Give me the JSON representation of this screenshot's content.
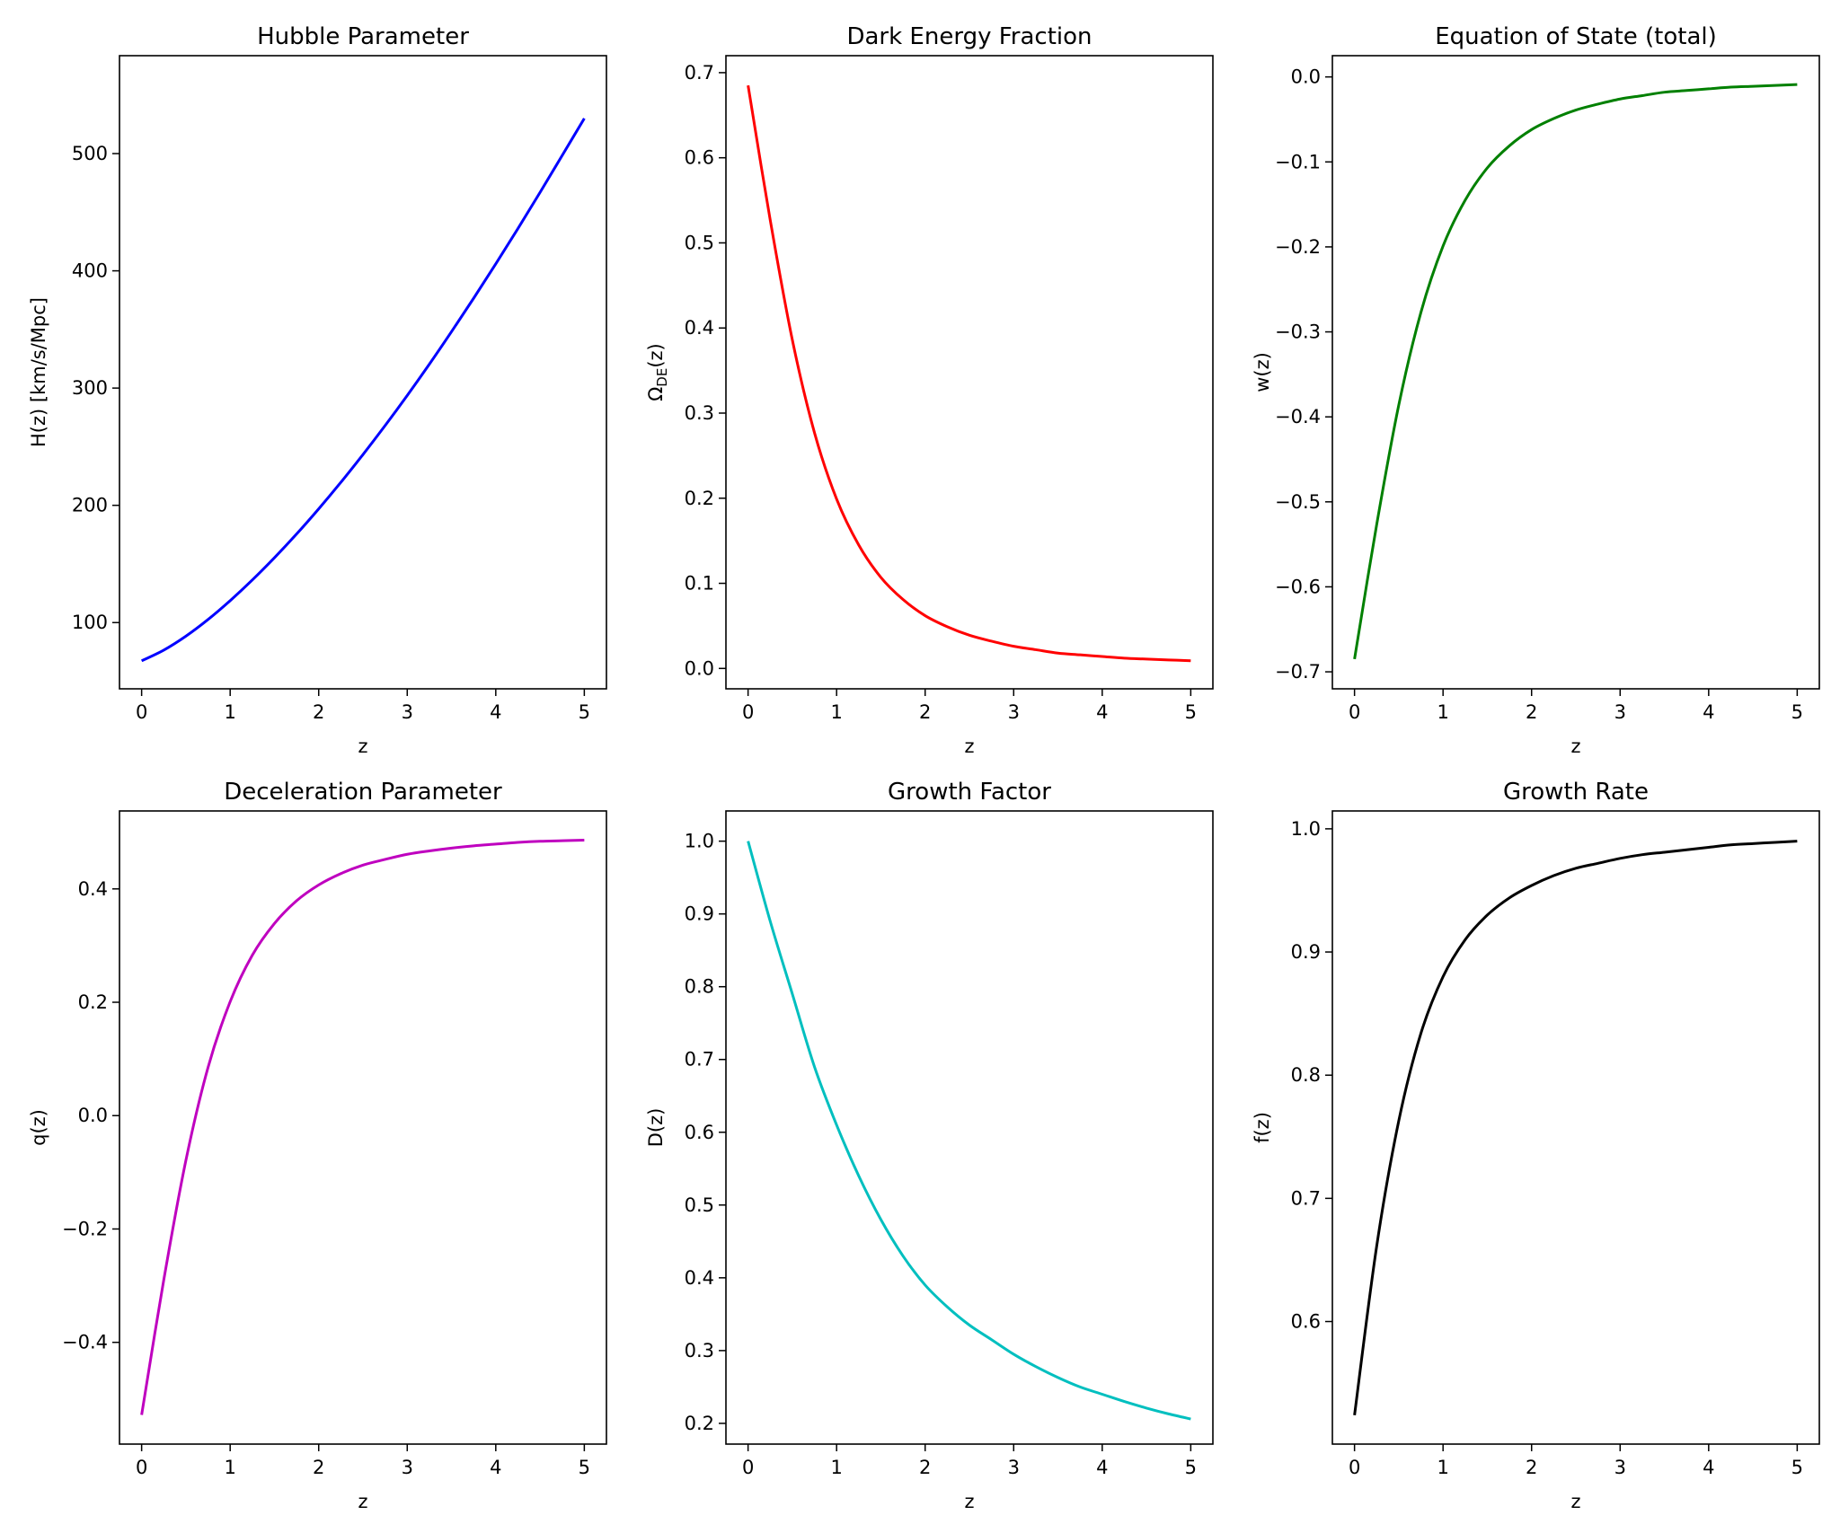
{
  "chart_data": [
    {
      "type": "line",
      "title": "Hubble Parameter",
      "xlabel": "z",
      "ylabel": "H(z) [km/s/Mpc]",
      "xlim": [
        -0.25,
        5.25
      ],
      "ylim": [
        43.5,
        583.5
      ],
      "xticks": [
        0,
        1,
        2,
        3,
        4,
        5
      ],
      "yticks": [
        100,
        200,
        300,
        400,
        500
      ],
      "tick_labels_y": [
        "100",
        "200",
        "300",
        "400",
        "500"
      ],
      "grid": false,
      "series": [
        {
          "color": "#0000ff",
          "x": [
            0,
            0.25,
            0.5,
            0.75,
            1,
            1.25,
            1.5,
            1.75,
            2,
            2.25,
            2.5,
            2.75,
            3,
            3.25,
            3.5,
            3.75,
            4,
            4.25,
            4.5,
            4.75,
            5
          ],
          "y": [
            67.4,
            76.5,
            88.4,
            102.6,
            118.7,
            136.3,
            155.3,
            175.5,
            197.0,
            219.6,
            243.3,
            268.0,
            293.7,
            320.4,
            348.1,
            376.6,
            405.9,
            436.0,
            466.9,
            498.4,
            530.0
          ]
        }
      ]
    },
    {
      "type": "line",
      "title": "Dark Energy Fraction",
      "xlabel": "z",
      "ylabel": "Ω_DE(z)",
      "ylabel_main": "Ω",
      "ylabel_sub": "DE",
      "ylabel_tail": "(z)",
      "xlim": [
        -0.25,
        5.25
      ],
      "ylim": [
        -0.02395,
        0.71995
      ],
      "xticks": [
        0,
        1,
        2,
        3,
        4,
        5
      ],
      "yticks": [
        0.0,
        0.1,
        0.2,
        0.3,
        0.4,
        0.5,
        0.6,
        0.7
      ],
      "tick_labels_y": [
        "0.0",
        "0.1",
        "0.2",
        "0.3",
        "0.4",
        "0.5",
        "0.6",
        "0.7"
      ],
      "grid": false,
      "series": [
        {
          "color": "#ff0000",
          "x": [
            0,
            0.25,
            0.5,
            0.75,
            1,
            1.25,
            1.5,
            1.75,
            2,
            2.25,
            2.5,
            2.75,
            3,
            3.25,
            3.5,
            3.75,
            4,
            4.25,
            4.5,
            4.75,
            5
          ],
          "y": [
            0.685,
            0.527,
            0.386,
            0.277,
            0.199,
            0.145,
            0.107,
            0.081,
            0.062,
            0.049,
            0.039,
            0.032,
            0.026,
            0.022,
            0.018,
            0.016,
            0.014,
            0.012,
            0.011,
            0.01,
            0.009
          ]
        }
      ]
    },
    {
      "type": "line",
      "title": "Equation of State (total)",
      "xlabel": "z",
      "ylabel": "w(z)",
      "xlim": [
        -0.25,
        5.25
      ],
      "ylim": [
        -0.72,
        0.025
      ],
      "xticks": [
        0,
        1,
        2,
        3,
        4,
        5
      ],
      "yticks": [
        0.0,
        -0.1,
        -0.2,
        -0.3,
        -0.4,
        -0.5,
        -0.6,
        -0.7
      ],
      "tick_labels_y": [
        "0.0",
        "−0.1",
        "−0.2",
        "−0.3",
        "−0.4",
        "−0.5",
        "−0.6",
        "−0.7"
      ],
      "grid": false,
      "series": [
        {
          "color": "#008000",
          "x": [
            0,
            0.25,
            0.5,
            0.75,
            1,
            1.25,
            1.5,
            1.75,
            2,
            2.25,
            2.5,
            2.75,
            3,
            3.25,
            3.5,
            3.75,
            4,
            4.25,
            4.5,
            4.75,
            5
          ],
          "y": [
            -0.685,
            -0.527,
            -0.386,
            -0.277,
            -0.199,
            -0.145,
            -0.107,
            -0.081,
            -0.062,
            -0.049,
            -0.039,
            -0.032,
            -0.026,
            -0.022,
            -0.018,
            -0.016,
            -0.014,
            -0.012,
            -0.011,
            -0.01,
            -0.009
          ]
        }
      ]
    },
    {
      "type": "line",
      "title": "Deceleration Parameter",
      "xlabel": "z",
      "ylabel": "q(z)",
      "xlim": [
        -0.25,
        5.25
      ],
      "ylim": [
        -0.5795,
        0.5375
      ],
      "xticks": [
        0,
        1,
        2,
        3,
        4,
        5
      ],
      "yticks": [
        -0.4,
        -0.2,
        0.0,
        0.2,
        0.4
      ],
      "tick_labels_y": [
        "−0.4",
        "−0.2",
        "0.0",
        "0.2",
        "0.4"
      ],
      "grid": false,
      "series": [
        {
          "color": "#bf00bf",
          "x": [
            0,
            0.25,
            0.5,
            0.75,
            1,
            1.25,
            1.5,
            1.75,
            2,
            2.25,
            2.5,
            2.75,
            3,
            3.25,
            3.5,
            3.75,
            4,
            4.25,
            4.5,
            4.75,
            5
          ],
          "y": [
            -0.528,
            -0.29,
            -0.079,
            0.085,
            0.201,
            0.283,
            0.339,
            0.379,
            0.407,
            0.427,
            0.442,
            0.452,
            0.461,
            0.467,
            0.472,
            0.476,
            0.479,
            0.482,
            0.484,
            0.485,
            0.486
          ]
        }
      ]
    },
    {
      "type": "line",
      "title": "Growth Factor",
      "xlabel": "z",
      "ylabel": "D(z)",
      "xlim": [
        -0.25,
        5.25
      ],
      "ylim": [
        0.1715,
        1.0415
      ],
      "xticks": [
        0,
        1,
        2,
        3,
        4,
        5
      ],
      "yticks": [
        0.2,
        0.3,
        0.4,
        0.5,
        0.6,
        0.7,
        0.8,
        0.9,
        1.0
      ],
      "tick_labels_y": [
        "0.2",
        "0.3",
        "0.4",
        "0.5",
        "0.6",
        "0.7",
        "0.8",
        "0.9",
        "1.0"
      ],
      "grid": false,
      "series": [
        {
          "color": "#00bfbf",
          "x": [
            0,
            0.25,
            0.5,
            0.75,
            1,
            1.25,
            1.5,
            1.75,
            2,
            2.25,
            2.5,
            2.75,
            3,
            3.25,
            3.5,
            3.75,
            4,
            4.25,
            4.5,
            4.75,
            5
          ],
          "y": [
            1.0,
            0.89,
            0.79,
            0.69,
            0.61,
            0.54,
            0.48,
            0.43,
            0.39,
            0.36,
            0.335,
            0.315,
            0.295,
            0.278,
            0.263,
            0.25,
            0.24,
            0.23,
            0.221,
            0.213,
            0.206
          ]
        }
      ]
    },
    {
      "type": "line",
      "title": "Growth Rate",
      "xlabel": "z",
      "ylabel": "f(z)",
      "xlim": [
        -0.25,
        5.25
      ],
      "ylim": [
        0.5005,
        1.0145
      ],
      "xticks": [
        0,
        1,
        2,
        3,
        4,
        5
      ],
      "yticks": [
        0.6,
        0.7,
        0.8,
        0.9,
        1.0
      ],
      "tick_labels_y": [
        "0.6",
        "0.7",
        "0.8",
        "0.9",
        "1.0"
      ],
      "grid": false,
      "series": [
        {
          "color": "#000000",
          "x": [
            0,
            0.25,
            0.5,
            0.75,
            1,
            1.25,
            1.5,
            1.75,
            2,
            2.25,
            2.5,
            2.75,
            3,
            3.25,
            3.5,
            3.75,
            4,
            4.25,
            4.5,
            4.75,
            5
          ],
          "y": [
            0.524,
            0.661,
            0.763,
            0.834,
            0.88,
            0.91,
            0.93,
            0.944,
            0.954,
            0.962,
            0.968,
            0.972,
            0.976,
            0.979,
            0.981,
            0.983,
            0.985,
            0.987,
            0.988,
            0.989,
            0.99
          ]
        }
      ]
    }
  ]
}
